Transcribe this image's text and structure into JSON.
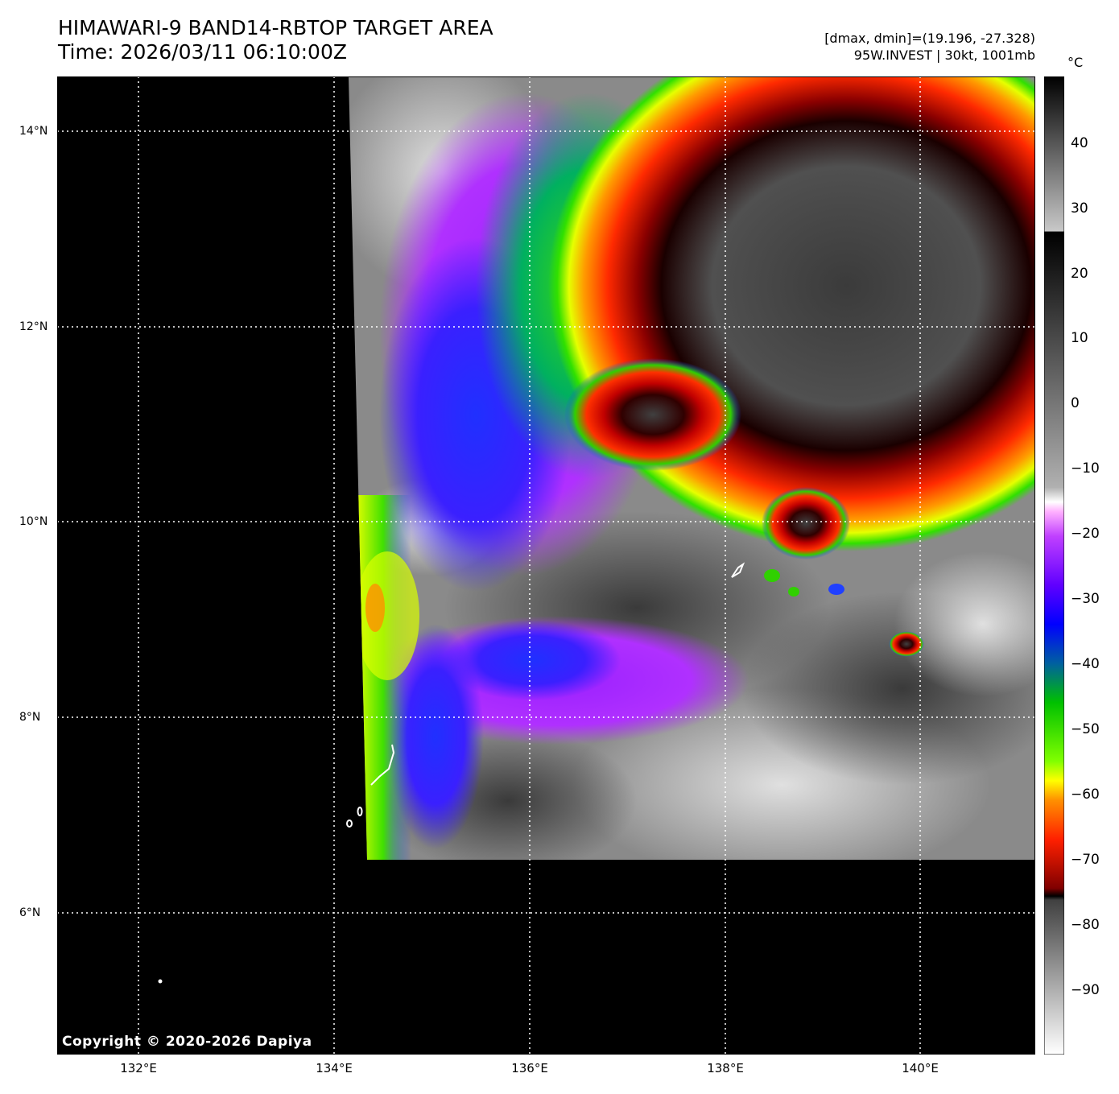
{
  "header": {
    "title_line1": "HIMAWARI-9 BAND14-RBTOP TARGET AREA",
    "title_line2": "Time: 2026/03/11 06:10:00Z",
    "range_text": "[dmax, dmin]=(19.196, -27.328)",
    "storm_text": "95W.INVEST | 30kt, 1001mb"
  },
  "map": {
    "copyright": "Copyright © 2020-2026 Dapiya",
    "lon_ticks": [
      "132°E",
      "134°E",
      "136°E",
      "138°E",
      "140°E"
    ],
    "lat_ticks": [
      "14°N",
      "12°N",
      "10°N",
      "8°N",
      "6°N"
    ],
    "background_color": "#000000",
    "grid_color": "#ffffff",
    "grid": true
  },
  "colorbar": {
    "unit": "°C",
    "ticks": [
      "40",
      "30",
      "20",
      "10",
      "0",
      "−10",
      "−20",
      "−30",
      "−40",
      "−50",
      "−60",
      "−70",
      "−80",
      "−90"
    ]
  }
}
